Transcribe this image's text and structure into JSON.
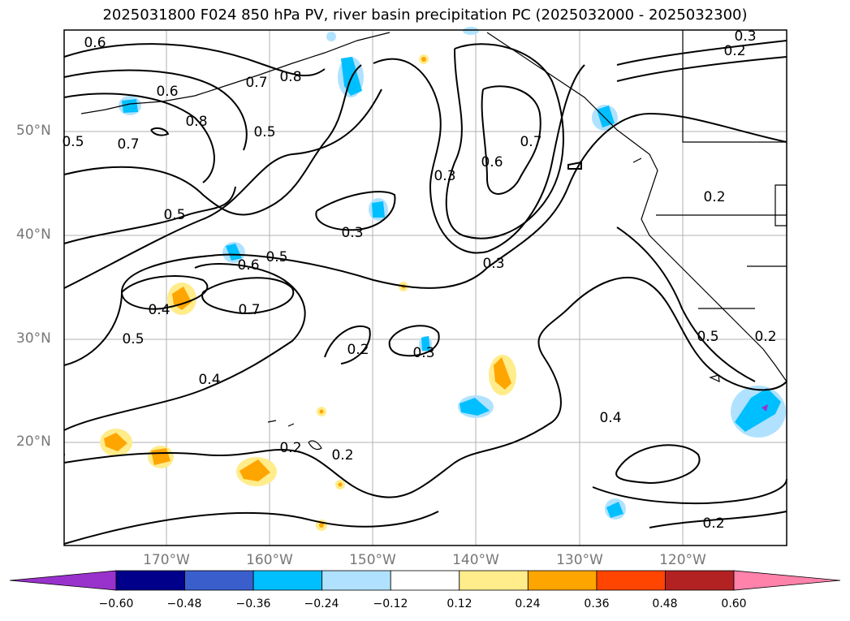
{
  "title": "2025031800 F024 850 hPa PV, river basin precipitation PC (2025032000 - 2025032300)",
  "lat_labels": [
    "50°N",
    "40°N",
    "30°N",
    "20°N"
  ],
  "lon_labels": [
    "170°W",
    "160°W",
    "150°W",
    "140°W",
    "130°W",
    "120°W"
  ],
  "contour_labels": [
    "0.6",
    "0.6",
    "0.8",
    "0.7",
    "0.8",
    "0.5",
    "0.7",
    "0.5",
    "0.5",
    "0.3",
    "0.6",
    "0.7",
    "0.3",
    "0.3",
    "0.2",
    "0.3",
    "0.2",
    "0.5",
    "0.6",
    "0.4",
    "0.7",
    "0.5",
    "0.4",
    "0.2",
    "0.3",
    "0.4",
    "0.5",
    "0.2",
    "0.2",
    "0.2",
    "0.2"
  ],
  "colorbar": {
    "ticks": [
      "−0.60",
      "−0.48",
      "−0.36",
      "−0.24",
      "−0.12",
      "0.12",
      "0.24",
      "0.36",
      "0.48",
      "0.60"
    ],
    "colors": [
      "#9932cc",
      "#00008b",
      "#3a5fcd",
      "#00bfff",
      "#b0e2ff",
      "#ffffff",
      "#ffec8b",
      "#ffa500",
      "#ff4500",
      "#b22222",
      "#ff82ab"
    ]
  }
}
